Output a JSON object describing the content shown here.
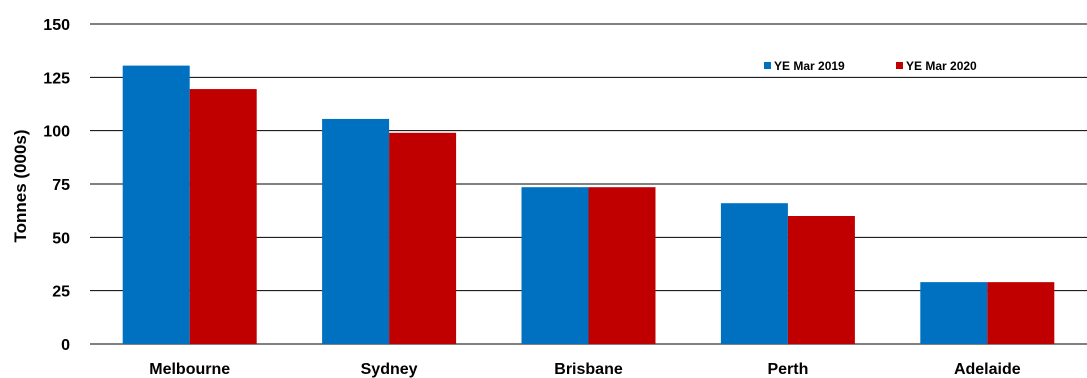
{
  "chart_data": {
    "type": "bar",
    "categories": [
      "Melbourne",
      "Sydney",
      "Brisbane",
      "Perth",
      "Adelaide"
    ],
    "series": [
      {
        "name": "YE Mar 2019",
        "color": "#0070C0",
        "values": [
          130.5,
          105.5,
          73.5,
          66,
          29
        ]
      },
      {
        "name": "YE Mar 2020",
        "color": "#C00000",
        "values": [
          119.5,
          99,
          73.5,
          60,
          29
        ]
      }
    ],
    "ylabel": "Tonnes (000s)",
    "ylim": [
      0,
      150
    ],
    "yticks": [
      "0",
      "25",
      "50",
      "75",
      "100",
      "125",
      "150"
    ],
    "grid": true,
    "legend": "top-right"
  }
}
